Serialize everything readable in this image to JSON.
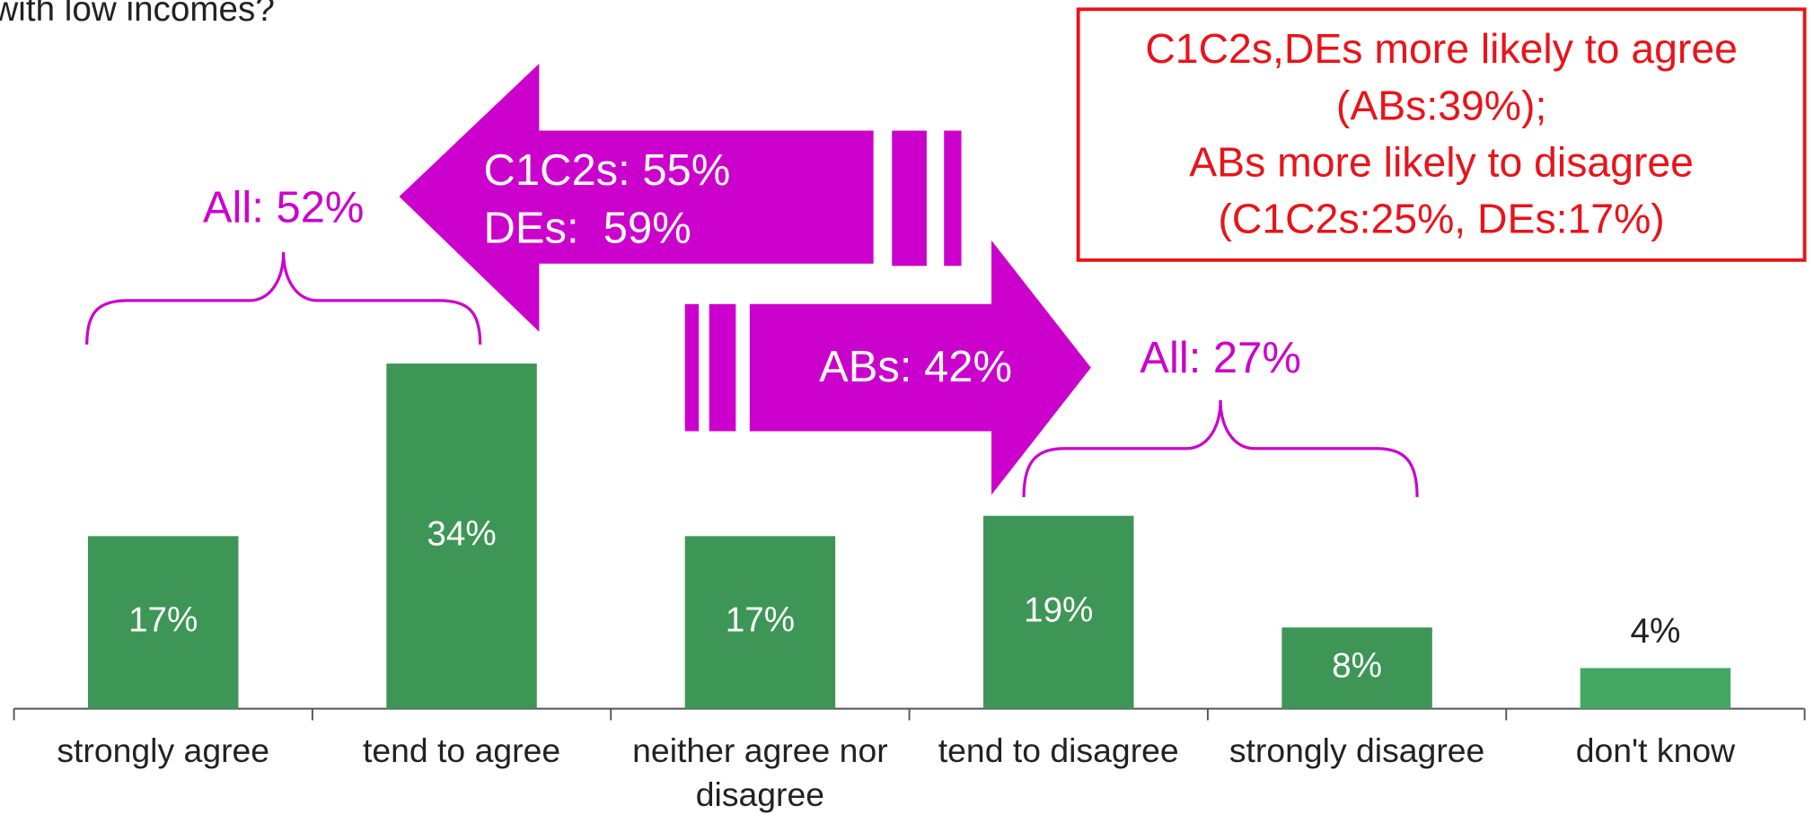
{
  "chart_data": {
    "type": "bar",
    "title": "with low incomes?",
    "categories": [
      "strongly agree",
      "tend to agree",
      "neither agree nor disagree",
      "tend to disagree",
      "strongly disagree",
      "don't know"
    ],
    "values": [
      17,
      34,
      17,
      19,
      8,
      4
    ],
    "value_labels": [
      "17%",
      "34%",
      "17%",
      "19%",
      "8%",
      "4%"
    ],
    "colors": [
      "#3d9656",
      "#3d9656",
      "#3d9656",
      "#3d9656",
      "#3d9656",
      "#45a862"
    ],
    "annotations": {
      "agree_all": "All: 52%",
      "agree_groups": [
        "C1C2s: 55%",
        "DEs:  59%"
      ],
      "disagree_groups": "ABs: 42%",
      "disagree_all": "All: 27%",
      "note": [
        "C1C2s,DEs more likely to agree",
        "(ABs:39%);",
        "ABs more likely to disagree",
        "(C1C2s:25%, DEs:17%)"
      ]
    }
  }
}
